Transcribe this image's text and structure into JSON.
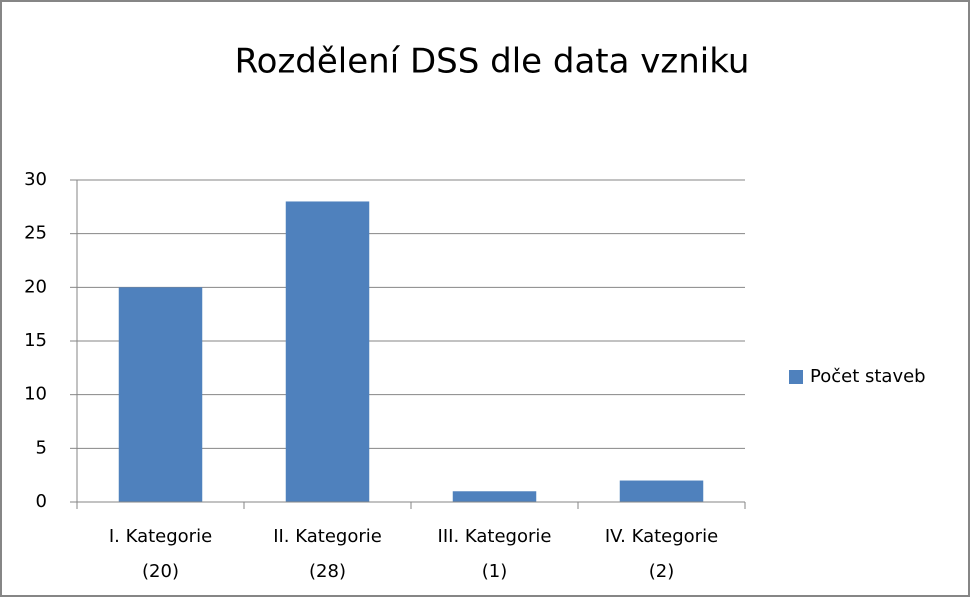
{
  "chart_data": {
    "type": "bar",
    "title": "Rozdělení DSS dle data vzniku",
    "categories": [
      [
        "I. Kategorie",
        "(20)"
      ],
      [
        "II. Kategorie",
        "(28)"
      ],
      [
        "III. Kategorie",
        "(1)"
      ],
      [
        "IV. Kategorie",
        "(2)"
      ]
    ],
    "series": [
      {
        "name": "Počet staveb",
        "color": "#4f81bd",
        "values": [
          20,
          28,
          1,
          2
        ]
      }
    ],
    "ylim": [
      0,
      30
    ],
    "yticks": [
      0,
      5,
      10,
      15,
      20,
      25,
      30
    ],
    "grid": true,
    "legend": "right"
  }
}
